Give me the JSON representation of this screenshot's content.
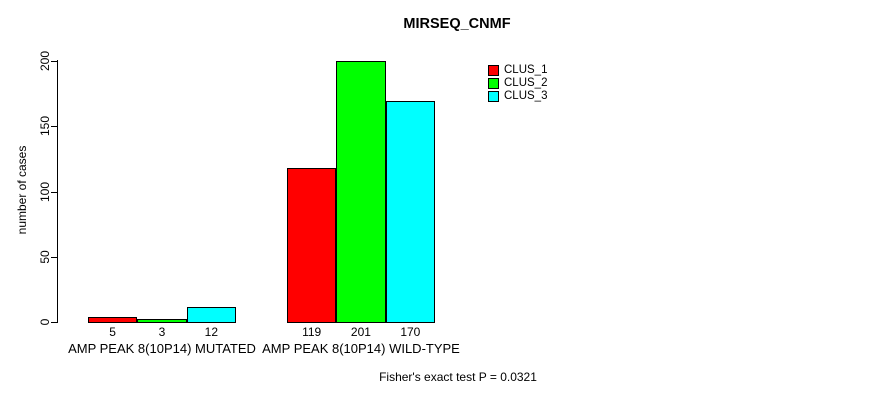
{
  "chart_data": {
    "type": "bar",
    "title": "MIRSEQ_CNMF",
    "xlabel": "",
    "ylabel": "number of cases",
    "ylim": [
      0,
      200
    ],
    "yticks": [
      0,
      50,
      100,
      150,
      200
    ],
    "grid": false,
    "legend_position": "top-right",
    "categories": [
      "AMP PEAK 8(10P14) MUTATED",
      "AMP PEAK 8(10P14) WILD-TYPE"
    ],
    "series": [
      {
        "name": "CLUS_1",
        "color": "#ff0000",
        "values": [
          5,
          119
        ]
      },
      {
        "name": "CLUS_2",
        "color": "#00ff00",
        "values": [
          3,
          201
        ]
      },
      {
        "name": "CLUS_3",
        "color": "#00ffff",
        "values": [
          12,
          170
        ]
      }
    ],
    "bar_value_labels": [
      [
        5,
        3,
        12
      ],
      [
        119,
        201,
        170
      ]
    ],
    "footnote": "Fisher's exact test P = 0.0321",
    "axis_color": "#000000",
    "bar_border_color": "#000000"
  }
}
